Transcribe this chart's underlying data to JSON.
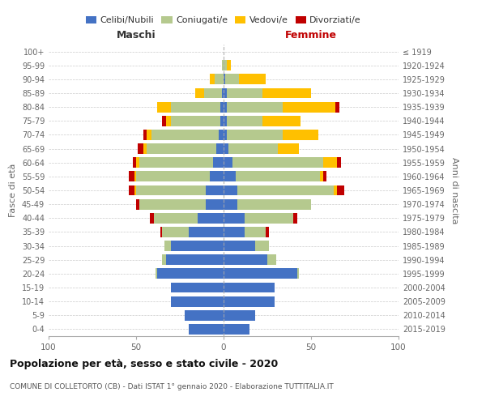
{
  "age_groups": [
    "0-4",
    "5-9",
    "10-14",
    "15-19",
    "20-24",
    "25-29",
    "30-34",
    "35-39",
    "40-44",
    "45-49",
    "50-54",
    "55-59",
    "60-64",
    "65-69",
    "70-74",
    "75-79",
    "80-84",
    "85-89",
    "90-94",
    "95-99",
    "100+"
  ],
  "birth_years": [
    "2015-2019",
    "2010-2014",
    "2005-2009",
    "2000-2004",
    "1995-1999",
    "1990-1994",
    "1985-1989",
    "1980-1984",
    "1975-1979",
    "1970-1974",
    "1965-1969",
    "1960-1964",
    "1955-1959",
    "1950-1954",
    "1945-1949",
    "1940-1944",
    "1935-1939",
    "1930-1934",
    "1925-1929",
    "1920-1924",
    "≤ 1919"
  ],
  "colors": {
    "celibi": "#4472c4",
    "coniugati": "#b5c98e",
    "vedovi": "#ffc000",
    "divorziati": "#c00000"
  },
  "male": {
    "celibi": [
      20,
      22,
      30,
      30,
      38,
      33,
      30,
      20,
      15,
      10,
      10,
      8,
      6,
      4,
      3,
      2,
      2,
      1,
      0,
      0,
      0
    ],
    "coniugati": [
      0,
      0,
      0,
      0,
      1,
      2,
      4,
      15,
      25,
      38,
      40,
      42,
      42,
      40,
      38,
      28,
      28,
      10,
      5,
      1,
      0
    ],
    "vedovi": [
      0,
      0,
      0,
      0,
      0,
      0,
      0,
      0,
      0,
      0,
      1,
      1,
      2,
      2,
      3,
      3,
      8,
      5,
      3,
      0,
      0
    ],
    "divorziati": [
      0,
      0,
      0,
      0,
      0,
      0,
      0,
      1,
      2,
      2,
      3,
      3,
      2,
      3,
      2,
      2,
      0,
      0,
      0,
      0,
      0
    ]
  },
  "female": {
    "celibi": [
      15,
      18,
      29,
      29,
      42,
      25,
      18,
      12,
      12,
      8,
      8,
      7,
      5,
      3,
      2,
      2,
      2,
      2,
      1,
      0,
      0
    ],
    "coniugati": [
      0,
      0,
      0,
      0,
      1,
      5,
      8,
      12,
      28,
      42,
      55,
      48,
      52,
      28,
      32,
      20,
      32,
      20,
      8,
      2,
      0
    ],
    "vedovi": [
      0,
      0,
      0,
      0,
      0,
      0,
      0,
      0,
      0,
      0,
      2,
      2,
      8,
      12,
      20,
      22,
      30,
      28,
      15,
      2,
      0
    ],
    "divorziati": [
      0,
      0,
      0,
      0,
      0,
      0,
      0,
      2,
      2,
      0,
      4,
      2,
      2,
      0,
      0,
      0,
      2,
      0,
      0,
      0,
      0
    ]
  },
  "xlim": 100,
  "title": "Popolazione per età, sesso e stato civile - 2020",
  "subtitle": "COMUNE DI COLLETORTO (CB) - Dati ISTAT 1° gennaio 2020 - Elaborazione TUTTITALIA.IT",
  "xlabel_left": "Maschi",
  "xlabel_right": "Femmine",
  "ylabel_left": "Fasce di età",
  "ylabel_right": "Anni di nascita"
}
